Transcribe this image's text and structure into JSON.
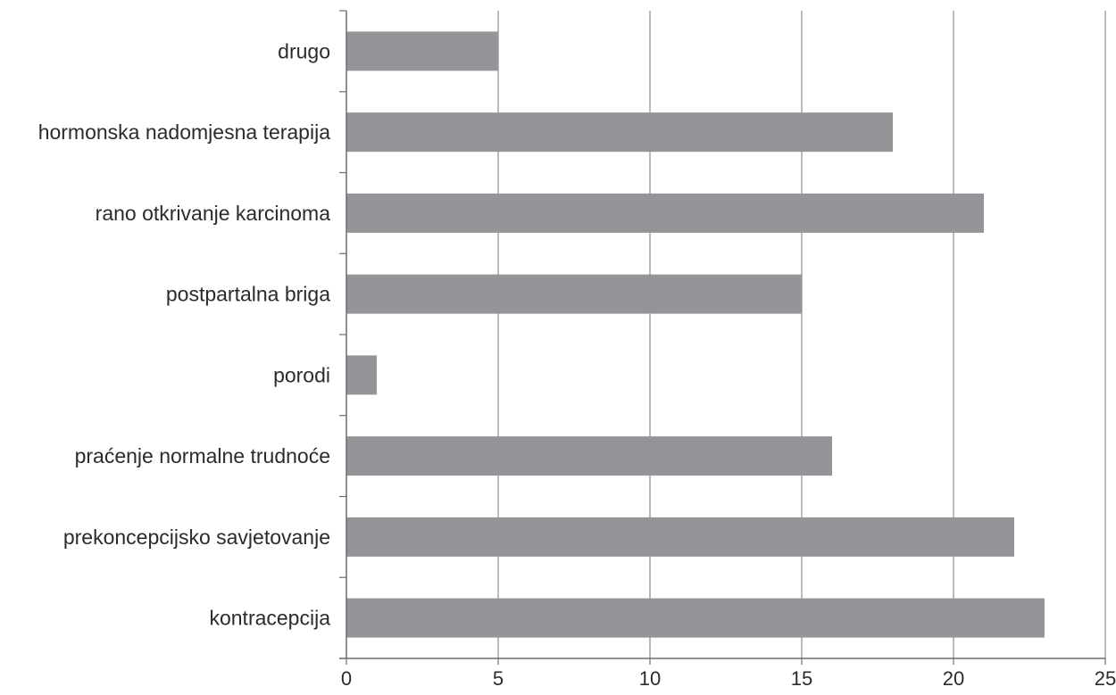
{
  "chart_data": {
    "type": "bar",
    "orientation": "horizontal",
    "categories": [
      "drugo",
      "hormonska nadomjesna terapija",
      "rano otkrivanje karcinoma",
      "postpartalna briga",
      "porodi",
      "praćenje normalne trudnoće",
      "prekoncepcijsko savjetovanje",
      "kontracepcija"
    ],
    "values": [
      5,
      18,
      21,
      15,
      1,
      16,
      22,
      23
    ],
    "xlim": [
      0,
      25
    ],
    "xticks": [
      "0",
      "5",
      "10",
      "15",
      "20",
      "25"
    ],
    "grid": "vertical",
    "legend": "none",
    "bar_color": "#939598",
    "grid_color": "#8c8c8c",
    "axis_color": "#6d6d6d"
  }
}
